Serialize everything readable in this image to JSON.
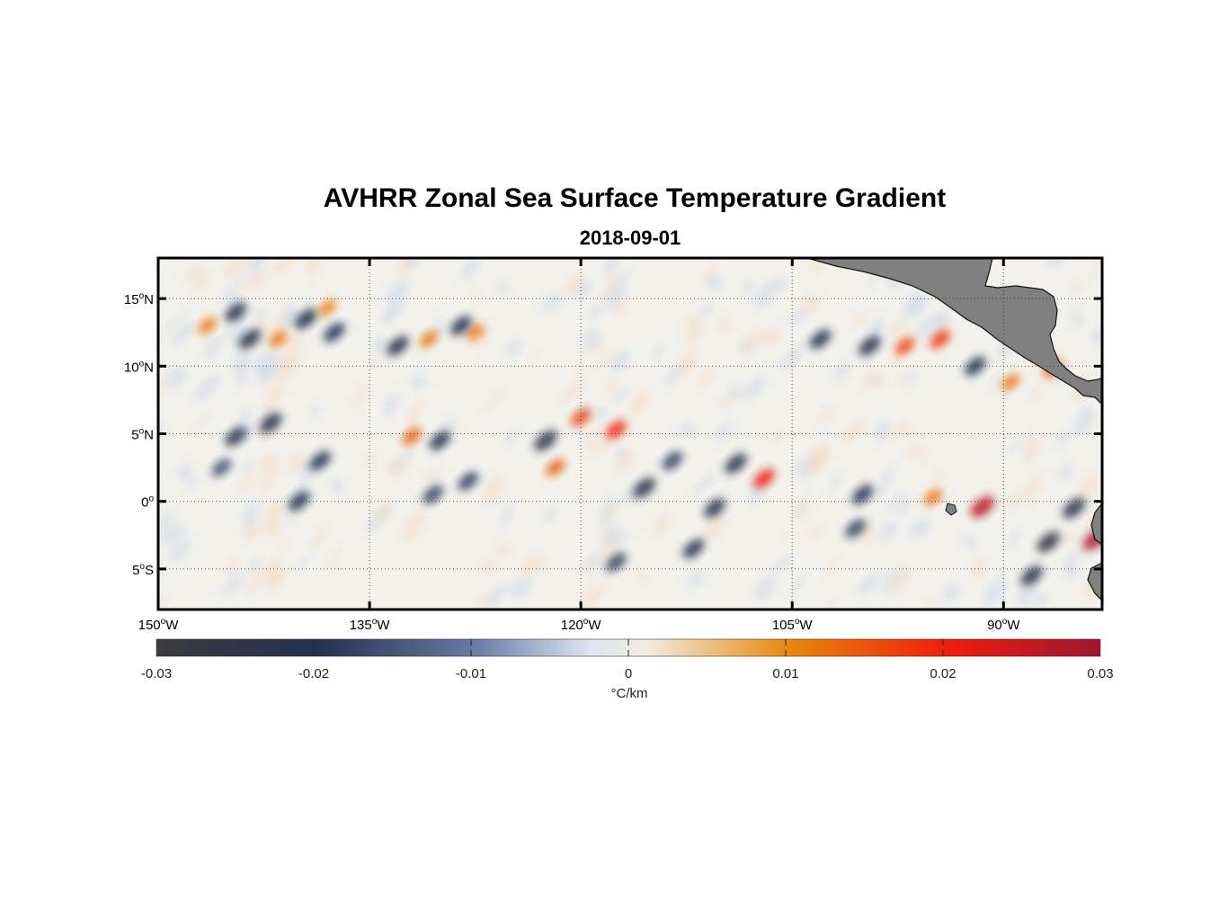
{
  "title": "AVHRR Zonal Sea Surface Temperature Gradient",
  "subtitle": "2018-09-01",
  "map": {
    "lon_range": [
      -150,
      -83
    ],
    "lat_range": [
      -8,
      18
    ],
    "x_ticks": [
      {
        "lon": -150,
        "text": "150",
        "deg": "o",
        "hemi": "W"
      },
      {
        "lon": -135,
        "text": "135",
        "deg": "o",
        "hemi": "W"
      },
      {
        "lon": -120,
        "text": "120",
        "deg": "o",
        "hemi": "W"
      },
      {
        "lon": -105,
        "text": "105",
        "deg": "o",
        "hemi": "W"
      },
      {
        "lon": -90,
        "text": "90",
        "deg": "o",
        "hemi": "W"
      }
    ],
    "y_ticks": [
      {
        "lat": 15,
        "text": "15",
        "deg": "o",
        "hemi": "N"
      },
      {
        "lat": 10,
        "text": "10",
        "deg": "o",
        "hemi": "N"
      },
      {
        "lat": 5,
        "text": "5",
        "deg": "o",
        "hemi": "N"
      },
      {
        "lat": 0,
        "text": "0",
        "deg": "o",
        "hemi": ""
      },
      {
        "lat": -5,
        "text": "5",
        "deg": "o",
        "hemi": "S"
      }
    ],
    "grid": "dotted",
    "land_color": "#808080"
  },
  "colorbar": {
    "range": [
      -0.03,
      0.03
    ],
    "tick_labels": [
      "-0.03",
      "-0.02",
      "-0.01",
      "0",
      "0.01",
      "0.02",
      "0.03"
    ],
    "tick_values": [
      -0.03,
      -0.02,
      -0.01,
      0,
      0.01,
      0.02,
      0.03
    ],
    "unit": "°C/km",
    "colors": [
      "#3b3b40",
      "#23304f",
      "#6a7da8",
      "#dde6f0",
      "#f3ecdf",
      "#e8870a",
      "#ef1c0c",
      "#9e1530"
    ]
  },
  "features": [
    {
      "lon": -146.5,
      "lat": 13.0,
      "value": 0.012
    },
    {
      "lon": -144.5,
      "lat": 14.0,
      "value": -0.02
    },
    {
      "lon": -143.5,
      "lat": 12.0,
      "value": -0.022
    },
    {
      "lon": -141.5,
      "lat": 12.0,
      "value": 0.012
    },
    {
      "lon": -139.5,
      "lat": 13.5,
      "value": -0.022
    },
    {
      "lon": -138.0,
      "lat": 14.3,
      "value": 0.011
    },
    {
      "lon": -137.5,
      "lat": 12.5,
      "value": -0.02
    },
    {
      "lon": -142.0,
      "lat": 5.8,
      "value": -0.022
    },
    {
      "lon": -144.5,
      "lat": 4.8,
      "value": -0.02
    },
    {
      "lon": -138.5,
      "lat": 3.0,
      "value": -0.02
    },
    {
      "lon": -140.0,
      "lat": 0.0,
      "value": -0.02
    },
    {
      "lon": -145.5,
      "lat": 2.5,
      "value": -0.016
    },
    {
      "lon": -132.0,
      "lat": 4.8,
      "value": 0.014
    },
    {
      "lon": -130.0,
      "lat": 4.5,
      "value": -0.02
    },
    {
      "lon": -130.5,
      "lat": 0.5,
      "value": -0.018
    },
    {
      "lon": -128.0,
      "lat": 1.5,
      "value": -0.018
    },
    {
      "lon": -133.0,
      "lat": 11.5,
      "value": -0.022
    },
    {
      "lon": -130.8,
      "lat": 12.0,
      "value": 0.012
    },
    {
      "lon": -127.5,
      "lat": 12.5,
      "value": 0.012
    },
    {
      "lon": -128.5,
      "lat": 13.0,
      "value": -0.02
    },
    {
      "lon": -121.8,
      "lat": 2.5,
      "value": 0.014
    },
    {
      "lon": -122.5,
      "lat": 4.5,
      "value": -0.024
    },
    {
      "lon": -120.0,
      "lat": 6.2,
      "value": 0.016
    },
    {
      "lon": -117.5,
      "lat": 5.3,
      "value": 0.019
    },
    {
      "lon": -115.5,
      "lat": 1.0,
      "value": -0.024
    },
    {
      "lon": -113.5,
      "lat": 3.0,
      "value": -0.018
    },
    {
      "lon": -107.0,
      "lat": 1.7,
      "value": 0.02
    },
    {
      "lon": -109.0,
      "lat": 2.8,
      "value": -0.022
    },
    {
      "lon": -110.5,
      "lat": -0.5,
      "value": -0.02
    },
    {
      "lon": -117.5,
      "lat": -4.5,
      "value": -0.018
    },
    {
      "lon": -112.0,
      "lat": -3.5,
      "value": -0.02
    },
    {
      "lon": -103.0,
      "lat": 12.0,
      "value": -0.02
    },
    {
      "lon": -99.5,
      "lat": 11.5,
      "value": -0.022
    },
    {
      "lon": -97.0,
      "lat": 11.5,
      "value": 0.016
    },
    {
      "lon": -94.5,
      "lat": 12.0,
      "value": 0.018
    },
    {
      "lon": -92.0,
      "lat": 10.0,
      "value": -0.02
    },
    {
      "lon": -89.5,
      "lat": 8.8,
      "value": 0.012
    },
    {
      "lon": -86.5,
      "lat": 9.8,
      "value": 0.014
    },
    {
      "lon": -91.5,
      "lat": -0.4,
      "value": 0.026
    },
    {
      "lon": -95.0,
      "lat": 0.3,
      "value": 0.012
    },
    {
      "lon": -100.0,
      "lat": 0.5,
      "value": -0.02
    },
    {
      "lon": -85.0,
      "lat": -0.5,
      "value": -0.024
    },
    {
      "lon": -86.8,
      "lat": -3.0,
      "value": -0.024
    },
    {
      "lon": -83.5,
      "lat": -2.8,
      "value": 0.028
    },
    {
      "lon": -88.0,
      "lat": -5.5,
      "value": -0.022
    },
    {
      "lon": -100.5,
      "lat": -2.0,
      "value": -0.018
    }
  ]
}
